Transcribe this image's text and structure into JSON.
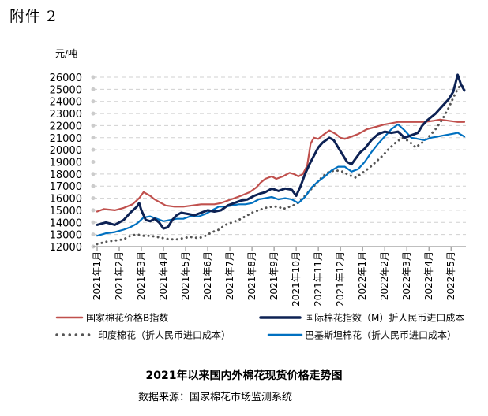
{
  "header": {
    "attachment_label": "附件 2"
  },
  "footer": {
    "title": "2021年以来国内外棉花现货价格走势图",
    "source": "数据来源：国家棉花市场监测系统"
  },
  "chart_data": {
    "type": "line",
    "ylabel": "元/吨",
    "ylim": [
      12000,
      26000
    ],
    "yticks": [
      12000,
      13000,
      14000,
      15000,
      16000,
      17000,
      18000,
      19000,
      20000,
      21000,
      22000,
      23000,
      24000,
      25000,
      26000
    ],
    "xlim": [
      0,
      16.6
    ],
    "xticks": [
      "2021年1月",
      "2021年2月",
      "2021年3月",
      "2021年4月",
      "2021年5月",
      "2021年6月",
      "2021年7月",
      "2021年8月",
      "2021年9月",
      "2021年10月",
      "2021年11月",
      "2021年12月",
      "2022年1月",
      "2022年2月",
      "2022年3月",
      "2022年4月",
      "2022年5月"
    ],
    "grid": true,
    "legend_position": "bottom",
    "series": [
      {
        "name": "国家棉花价格B指数",
        "color": "#c0504d",
        "style": "solid",
        "points": [
          [
            0,
            14900
          ],
          [
            0.3,
            15100
          ],
          [
            0.8,
            15000
          ],
          [
            1.2,
            15200
          ],
          [
            1.6,
            15500
          ],
          [
            1.9,
            16000
          ],
          [
            2.1,
            16500
          ],
          [
            2.4,
            16200
          ],
          [
            2.6,
            15900
          ],
          [
            2.8,
            15700
          ],
          [
            3.1,
            15400
          ],
          [
            3.5,
            15300
          ],
          [
            3.9,
            15300
          ],
          [
            4.3,
            15400
          ],
          [
            4.7,
            15500
          ],
          [
            5.0,
            15500
          ],
          [
            5.3,
            15500
          ],
          [
            5.6,
            15600
          ],
          [
            5.9,
            15800
          ],
          [
            6.2,
            16000
          ],
          [
            6.5,
            16200
          ],
          [
            6.9,
            16500
          ],
          [
            7.2,
            16900
          ],
          [
            7.4,
            17300
          ],
          [
            7.6,
            17600
          ],
          [
            7.9,
            17800
          ],
          [
            8.1,
            17600
          ],
          [
            8.4,
            17800
          ],
          [
            8.7,
            18100
          ],
          [
            8.9,
            18000
          ],
          [
            9.1,
            17800
          ],
          [
            9.3,
            18000
          ],
          [
            9.5,
            18700
          ],
          [
            9.65,
            20500
          ],
          [
            9.8,
            21000
          ],
          [
            10.0,
            20900
          ],
          [
            10.2,
            21200
          ],
          [
            10.5,
            21600
          ],
          [
            10.8,
            21300
          ],
          [
            11.0,
            21000
          ],
          [
            11.2,
            20900
          ],
          [
            11.5,
            21100
          ],
          [
            11.8,
            21300
          ],
          [
            12.2,
            21700
          ],
          [
            12.6,
            21900
          ],
          [
            13.0,
            22100
          ],
          [
            13.3,
            22200
          ],
          [
            13.6,
            22300
          ],
          [
            14.0,
            22300
          ],
          [
            14.4,
            22300
          ],
          [
            14.8,
            22300
          ],
          [
            15.2,
            22400
          ],
          [
            15.5,
            22500
          ],
          [
            15.9,
            22400
          ],
          [
            16.3,
            22300
          ],
          [
            16.6,
            22300
          ]
        ]
      },
      {
        "name": "国际棉花指数（M）折人民币进口成本",
        "color": "#0d2254",
        "style": "solid",
        "points": [
          [
            0,
            13800
          ],
          [
            0.4,
            14000
          ],
          [
            0.8,
            13800
          ],
          [
            1.2,
            14200
          ],
          [
            1.5,
            14800
          ],
          [
            1.8,
            15300
          ],
          [
            1.9,
            15600
          ],
          [
            2.0,
            15000
          ],
          [
            2.2,
            14200
          ],
          [
            2.4,
            14100
          ],
          [
            2.6,
            14300
          ],
          [
            2.8,
            14000
          ],
          [
            3.0,
            13500
          ],
          [
            3.2,
            13600
          ],
          [
            3.4,
            14200
          ],
          [
            3.6,
            14600
          ],
          [
            3.8,
            14800
          ],
          [
            4.1,
            14700
          ],
          [
            4.4,
            14600
          ],
          [
            4.7,
            14800
          ],
          [
            5.0,
            15000
          ],
          [
            5.3,
            14900
          ],
          [
            5.6,
            15000
          ],
          [
            5.9,
            15400
          ],
          [
            6.2,
            15600
          ],
          [
            6.5,
            15800
          ],
          [
            6.8,
            15900
          ],
          [
            7.1,
            16200
          ],
          [
            7.4,
            16400
          ],
          [
            7.6,
            16500
          ],
          [
            7.9,
            16800
          ],
          [
            8.2,
            16600
          ],
          [
            8.5,
            16800
          ],
          [
            8.8,
            16700
          ],
          [
            9.0,
            16200
          ],
          [
            9.2,
            17000
          ],
          [
            9.4,
            18000
          ],
          [
            9.6,
            18800
          ],
          [
            9.8,
            19500
          ],
          [
            10.0,
            20200
          ],
          [
            10.2,
            20600
          ],
          [
            10.5,
            21000
          ],
          [
            10.7,
            20800
          ],
          [
            10.9,
            20200
          ],
          [
            11.1,
            19600
          ],
          [
            11.3,
            19000
          ],
          [
            11.5,
            18800
          ],
          [
            11.7,
            19300
          ],
          [
            11.9,
            19800
          ],
          [
            12.1,
            20100
          ],
          [
            12.4,
            20800
          ],
          [
            12.7,
            21300
          ],
          [
            13.0,
            21500
          ],
          [
            13.3,
            21400
          ],
          [
            13.6,
            21500
          ],
          [
            13.9,
            21000
          ],
          [
            14.2,
            21200
          ],
          [
            14.5,
            21400
          ],
          [
            14.7,
            22000
          ],
          [
            14.9,
            22400
          ],
          [
            15.1,
            22700
          ],
          [
            15.3,
            23000
          ],
          [
            15.5,
            23400
          ],
          [
            15.7,
            23800
          ],
          [
            15.9,
            24200
          ],
          [
            16.1,
            24800
          ],
          [
            16.3,
            26200
          ],
          [
            16.45,
            25400
          ],
          [
            16.6,
            24900
          ]
        ]
      },
      {
        "name": "印度棉花（折人民币进口成本）",
        "color": "#555555",
        "style": "dotted",
        "points": [
          [
            0,
            12200
          ],
          [
            0.4,
            12400
          ],
          [
            0.8,
            12500
          ],
          [
            1.2,
            12600
          ],
          [
            1.5,
            12900
          ],
          [
            1.8,
            13000
          ],
          [
            2.1,
            12900
          ],
          [
            2.4,
            12900
          ],
          [
            2.7,
            12800
          ],
          [
            3.0,
            12700
          ],
          [
            3.3,
            12600
          ],
          [
            3.6,
            12600
          ],
          [
            3.9,
            12700
          ],
          [
            4.2,
            12800
          ],
          [
            4.6,
            12700
          ],
          [
            4.9,
            12900
          ],
          [
            5.2,
            13200
          ],
          [
            5.5,
            13400
          ],
          [
            5.8,
            13800
          ],
          [
            6.1,
            14000
          ],
          [
            6.4,
            14200
          ],
          [
            6.7,
            14500
          ],
          [
            7.0,
            14800
          ],
          [
            7.3,
            15000
          ],
          [
            7.6,
            15200
          ],
          [
            7.9,
            15300
          ],
          [
            8.2,
            15300
          ],
          [
            8.4,
            15100
          ],
          [
            8.7,
            15300
          ],
          [
            9.0,
            15500
          ],
          [
            9.3,
            16000
          ],
          [
            9.6,
            16600
          ],
          [
            9.9,
            17200
          ],
          [
            10.2,
            17800
          ],
          [
            10.5,
            18200
          ],
          [
            10.8,
            18300
          ],
          [
            11.1,
            18200
          ],
          [
            11.4,
            17900
          ],
          [
            11.7,
            17700
          ],
          [
            12.0,
            18100
          ],
          [
            12.3,
            18500
          ],
          [
            12.6,
            19000
          ],
          [
            12.9,
            19500
          ],
          [
            13.2,
            20100
          ],
          [
            13.5,
            20600
          ],
          [
            13.8,
            21000
          ],
          [
            14.1,
            20700
          ],
          [
            14.4,
            20200
          ],
          [
            14.7,
            20600
          ],
          [
            15.0,
            21100
          ],
          [
            15.3,
            21700
          ],
          [
            15.6,
            22500
          ],
          [
            15.9,
            23500
          ],
          [
            16.2,
            24700
          ],
          [
            16.4,
            25300
          ],
          [
            16.6,
            25200
          ]
        ]
      },
      {
        "name": "巴基斯坦棉花（折人民币进口成本）",
        "color": "#0070c0",
        "style": "solid",
        "points": [
          [
            0,
            12900
          ],
          [
            0.4,
            13100
          ],
          [
            0.8,
            13200
          ],
          [
            1.2,
            13400
          ],
          [
            1.5,
            13600
          ],
          [
            1.8,
            13900
          ],
          [
            2.1,
            14400
          ],
          [
            2.4,
            14500
          ],
          [
            2.7,
            14300
          ],
          [
            3.0,
            14100
          ],
          [
            3.3,
            14200
          ],
          [
            3.6,
            14300
          ],
          [
            3.9,
            14300
          ],
          [
            4.2,
            14500
          ],
          [
            4.6,
            14500
          ],
          [
            4.9,
            14700
          ],
          [
            5.2,
            15000
          ],
          [
            5.5,
            15300
          ],
          [
            5.8,
            15300
          ],
          [
            6.1,
            15400
          ],
          [
            6.4,
            15500
          ],
          [
            6.7,
            15500
          ],
          [
            7.0,
            15600
          ],
          [
            7.3,
            15900
          ],
          [
            7.6,
            16000
          ],
          [
            7.9,
            16100
          ],
          [
            8.2,
            15900
          ],
          [
            8.5,
            16000
          ],
          [
            8.8,
            15900
          ],
          [
            9.1,
            15600
          ],
          [
            9.4,
            16100
          ],
          [
            9.7,
            16900
          ],
          [
            10.0,
            17400
          ],
          [
            10.3,
            17800
          ],
          [
            10.6,
            18300
          ],
          [
            10.9,
            18600
          ],
          [
            11.2,
            18600
          ],
          [
            11.5,
            18200
          ],
          [
            11.8,
            18400
          ],
          [
            12.1,
            19000
          ],
          [
            12.4,
            19800
          ],
          [
            12.7,
            20500
          ],
          [
            13.0,
            21100
          ],
          [
            13.3,
            21700
          ],
          [
            13.6,
            22100
          ],
          [
            13.9,
            21600
          ],
          [
            14.2,
            21000
          ],
          [
            14.5,
            20900
          ],
          [
            14.8,
            20800
          ],
          [
            15.1,
            21000
          ],
          [
            15.4,
            21100
          ],
          [
            15.7,
            21200
          ],
          [
            16.0,
            21300
          ],
          [
            16.3,
            21400
          ],
          [
            16.6,
            21100
          ]
        ]
      }
    ]
  }
}
